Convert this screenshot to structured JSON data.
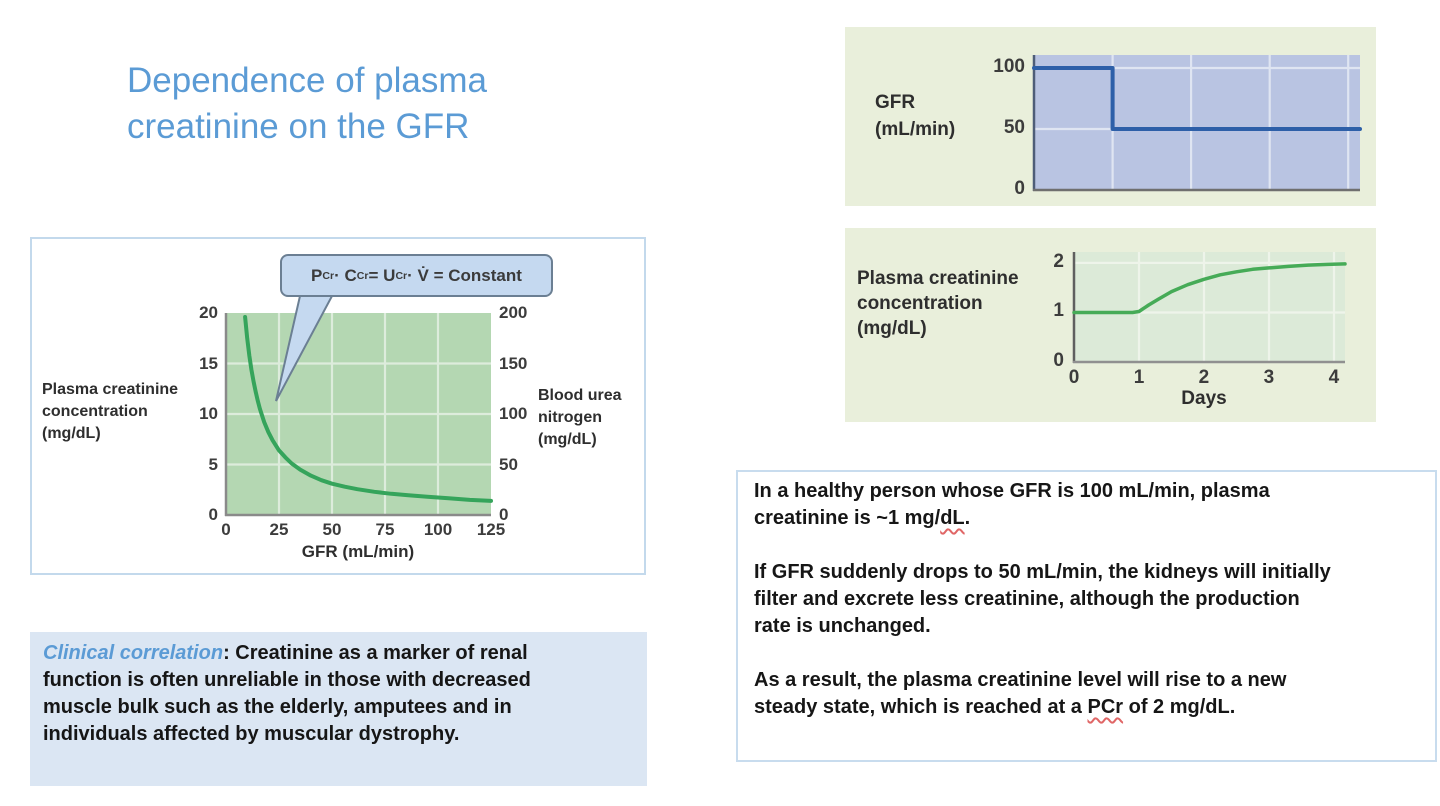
{
  "title_lines": [
    "Dependence of plasma",
    "creatinine on the GFR"
  ],
  "colors": {
    "title_blue": "#5b9bd5",
    "panel_green": "#e9efdb",
    "plot_green": "#b4d7b2",
    "plot_blue": "#b9c4e2",
    "plot_pale_green": "#dcead8",
    "curve_green": "#35a45b",
    "line_blue": "#2d5fa8",
    "callout_blue": "#c5d9f0",
    "callout_border": "#6b7f93",
    "clinical_bg": "#dbe6f3",
    "box_border_blue": "#c8dcee",
    "squiggle_red": "#e06666"
  },
  "figure_left": {
    "formula_terms": [
      {
        "base": "P",
        "sub": "Cr"
      },
      {
        "op": " · "
      },
      {
        "base": "C",
        "sub": "Cr"
      },
      {
        "op": " = "
      },
      {
        "base": "U",
        "sub": "Cr"
      },
      {
        "op": " · "
      },
      {
        "base": "V̇"
      },
      {
        "op": " = "
      },
      {
        "base": "Constant"
      }
    ],
    "y_left_label_lines": [
      "Plasma creatinine",
      "concentration",
      "(mg/dL)"
    ],
    "y_right_label_lines": [
      "Blood urea",
      "nitrogen",
      "(mg/dL)"
    ],
    "x_label": "GFR (mL/min)"
  },
  "gfr_panel": {
    "label_lines": [
      "GFR",
      "(mL/min)"
    ]
  },
  "pcr_panel": {
    "label_lines": [
      "Plasma creatinine",
      "concentration",
      "(mg/dL)"
    ],
    "x_label": "Days"
  },
  "info_box": {
    "paragraphs": [
      {
        "lines": [
          [
            {
              "text": "In a healthy person whose GFR is 100 mL/min, plasma"
            }
          ],
          [
            {
              "text": "creatinine is ~1 mg/"
            },
            {
              "text": "dL",
              "squiggle": true
            },
            {
              "text": "."
            }
          ]
        ]
      },
      {
        "lines": [
          [
            {
              "text": "If GFR suddenly drops to 50 mL/min, the kidneys will initially"
            }
          ],
          [
            {
              "text": "filter and excrete less creatinine, although the production"
            }
          ],
          [
            {
              "text": "rate is unchanged."
            }
          ]
        ]
      },
      {
        "lines": [
          [
            {
              "text": "As a result, the plasma creatinine level will rise to a new"
            }
          ],
          [
            {
              "text": "steady state, which is reached at a "
            },
            {
              "text": "PCr",
              "squiggle": true
            },
            {
              "text": " of 2 mg/dL."
            }
          ]
        ]
      }
    ]
  },
  "clinical_box": {
    "paragraphs": [
      {
        "lines": [
          [
            {
              "text": "Clinical correlation",
              "style": "lead"
            },
            {
              "text": ": Creatinine as a marker of renal"
            }
          ],
          [
            {
              "text": "function is often unreliable in those with decreased"
            }
          ],
          [
            {
              "text": "muscle bulk such as the elderly, amputees and in"
            }
          ],
          [
            {
              "text": "individuals affected by muscular dystrophy."
            }
          ]
        ]
      }
    ]
  },
  "chart_data": [
    {
      "id": "plasma-creatinine-vs-gfr",
      "type": "line",
      "xlabel": "GFR (mL/min)",
      "ylabel": "Plasma creatinine concentration (mg/dL)",
      "ylabel_right": "Blood urea nitrogen (mg/dL)",
      "xlim": [
        0,
        125
      ],
      "ylim": [
        0,
        20
      ],
      "ylim_right": [
        0,
        200
      ],
      "x_ticks": [
        0,
        25,
        50,
        75,
        100,
        125
      ],
      "y_ticks": [
        0,
        5,
        10,
        15,
        20
      ],
      "y_ticks_right": [
        0,
        50,
        100,
        150,
        200
      ],
      "grid": true,
      "annotation": "PCr · CCr = UCr · V̇ = Constant",
      "series": [
        {
          "name": "plasma-creatinine-curve",
          "color": "#35a45b",
          "points": [
            [
              9,
              19.6
            ],
            [
              10,
              17.5
            ],
            [
              11,
              15.8
            ],
            [
              12,
              14.4
            ],
            [
              13,
              13.2
            ],
            [
              14,
              12.2
            ],
            [
              15,
              11.3
            ],
            [
              16,
              10.5
            ],
            [
              18,
              9.2
            ],
            [
              20,
              8.2
            ],
            [
              22,
              7.4
            ],
            [
              25,
              6.4
            ],
            [
              28,
              5.7
            ],
            [
              31,
              5.1
            ],
            [
              35,
              4.5
            ],
            [
              40,
              3.9
            ],
            [
              45,
              3.45
            ],
            [
              50,
              3.1
            ],
            [
              56,
              2.8
            ],
            [
              62,
              2.55
            ],
            [
              70,
              2.3
            ],
            [
              78,
              2.1
            ],
            [
              86,
              1.95
            ],
            [
              95,
              1.8
            ],
            [
              105,
              1.65
            ],
            [
              115,
              1.5
            ],
            [
              125,
              1.4
            ]
          ]
        }
      ]
    },
    {
      "id": "gfr-step",
      "type": "line",
      "ylabel": "GFR (mL/min)",
      "xlim": [
        0,
        4.15
      ],
      "ylim": [
        0,
        110.7
      ],
      "y_ticks": [
        0,
        50,
        100
      ],
      "grid": true,
      "series": [
        {
          "name": "gfr-step-line",
          "color": "#2d5fa8",
          "points": [
            [
              0,
              100
            ],
            [
              1,
              100
            ],
            [
              1,
              50
            ],
            [
              4.15,
              50
            ]
          ]
        }
      ]
    },
    {
      "id": "plasma-creatinine-rise",
      "type": "line",
      "xlabel": "Days",
      "ylabel": "Plasma creatinine concentration (mg/dL)",
      "xlim": [
        0,
        4.17
      ],
      "ylim": [
        0,
        2.22
      ],
      "x_ticks": [
        0,
        1,
        2,
        3,
        4
      ],
      "y_ticks": [
        0,
        1,
        2
      ],
      "grid": true,
      "series": [
        {
          "name": "plasma-creatinine-rise-curve",
          "color": "#46ab57",
          "points": [
            [
              0,
              1
            ],
            [
              0.9,
              1
            ],
            [
              1,
              1.02
            ],
            [
              1.15,
              1.15
            ],
            [
              1.3,
              1.27
            ],
            [
              1.5,
              1.42
            ],
            [
              1.75,
              1.56
            ],
            [
              2,
              1.67
            ],
            [
              2.25,
              1.76
            ],
            [
              2.5,
              1.82
            ],
            [
              2.75,
              1.87
            ],
            [
              3,
              1.9
            ],
            [
              3.3,
              1.93
            ],
            [
              3.6,
              1.955
            ],
            [
              3.9,
              1.97
            ],
            [
              4.17,
              1.98
            ]
          ]
        }
      ]
    }
  ]
}
